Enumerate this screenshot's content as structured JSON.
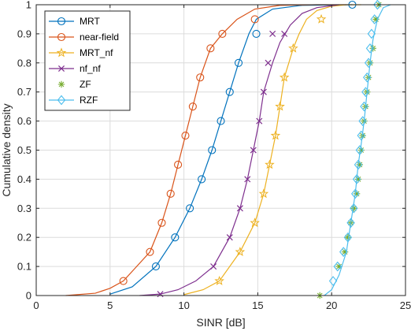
{
  "chart_data": {
    "type": "line",
    "title": "",
    "xlabel": "SINR [dB]",
    "ylabel": "Cumulative density",
    "xlim": [
      0,
      25
    ],
    "ylim": [
      0,
      1
    ],
    "xticks": [
      0,
      5,
      10,
      15,
      20,
      25
    ],
    "yticks": [
      0,
      0.1,
      0.2,
      0.3,
      0.4,
      0.5,
      0.6,
      0.7,
      0.8,
      0.9,
      1
    ],
    "xtick_labels": [
      "0",
      "5",
      "10",
      "15",
      "20",
      "25"
    ],
    "ytick_labels": [
      "0",
      "0.1",
      "0.2",
      "0.3",
      "0.4",
      "0.5",
      "0.6",
      "0.7",
      "0.8",
      "0.9",
      "1"
    ],
    "grid": true,
    "legend_position": "top-left",
    "series": [
      {
        "name": "MRT",
        "color": "#0072BD",
        "marker": "circle",
        "line": true,
        "x": [
          5.0,
          6.5,
          8.1,
          9.4,
          10.4,
          11.2,
          11.9,
          12.5,
          13.1,
          13.7,
          14.4,
          14.9,
          16.0,
          18.0,
          21.4
        ],
        "y": [
          0.005,
          0.03,
          0.1,
          0.2,
          0.3,
          0.4,
          0.5,
          0.6,
          0.7,
          0.8,
          0.9,
          0.95,
          0.985,
          0.998,
          1.0
        ],
        "mx": [
          8.1,
          9.4,
          10.4,
          11.2,
          11.9,
          12.5,
          13.1,
          13.7,
          14.9,
          21.4
        ],
        "my": [
          0.1,
          0.2,
          0.3,
          0.4,
          0.5,
          0.6,
          0.7,
          0.8,
          0.9,
          1.0
        ]
      },
      {
        "name": "near-field",
        "color": "#D95319",
        "marker": "circle",
        "line": true,
        "x": [
          2.0,
          4.0,
          5.0,
          5.9,
          6.8,
          7.7,
          8.5,
          9.1,
          9.6,
          10.1,
          10.6,
          11.1,
          11.8,
          12.6,
          13.6,
          14.8,
          16.5,
          19.0,
          21.0
        ],
        "y": [
          0.0,
          0.008,
          0.025,
          0.05,
          0.1,
          0.15,
          0.25,
          0.35,
          0.45,
          0.55,
          0.65,
          0.75,
          0.85,
          0.9,
          0.95,
          0.985,
          0.998,
          1.0,
          1.0
        ],
        "mx": [
          5.9,
          7.7,
          8.5,
          9.1,
          9.6,
          10.1,
          10.6,
          11.1,
          11.8,
          12.6,
          14.8
        ],
        "my": [
          0.05,
          0.15,
          0.25,
          0.35,
          0.45,
          0.55,
          0.65,
          0.75,
          0.85,
          0.9,
          0.95
        ]
      },
      {
        "name": "MRT_nf",
        "color": "#EDB120",
        "marker": "star",
        "line": true,
        "x": [
          10.0,
          11.3,
          12.4,
          13.8,
          14.8,
          15.4,
          15.8,
          16.2,
          16.5,
          16.8,
          17.1,
          17.4,
          17.8,
          18.3,
          19.0,
          20.0,
          21.0,
          22.0
        ],
        "y": [
          0.003,
          0.02,
          0.05,
          0.15,
          0.25,
          0.35,
          0.45,
          0.55,
          0.65,
          0.75,
          0.8,
          0.85,
          0.9,
          0.95,
          0.98,
          0.995,
          1.0,
          1.0
        ],
        "mx": [
          12.4,
          13.8,
          14.8,
          15.4,
          15.8,
          16.2,
          16.5,
          16.8,
          17.4,
          19.3
        ],
        "my": [
          0.05,
          0.15,
          0.25,
          0.35,
          0.45,
          0.55,
          0.65,
          0.75,
          0.85,
          0.95
        ]
      },
      {
        "name": "nf_nf",
        "color": "#7E2F8E",
        "marker": "cross",
        "line": true,
        "x": [
          7.0,
          8.4,
          9.6,
          10.8,
          12.0,
          13.1,
          13.8,
          14.3,
          14.7,
          15.1,
          15.4,
          15.7,
          16.0,
          16.5,
          17.2,
          18.0,
          19.0,
          20.5
        ],
        "y": [
          0.0,
          0.005,
          0.02,
          0.05,
          0.1,
          0.2,
          0.3,
          0.4,
          0.5,
          0.6,
          0.7,
          0.75,
          0.8,
          0.87,
          0.93,
          0.97,
          0.99,
          1.0
        ],
        "mx": [
          8.4,
          12.0,
          13.1,
          13.8,
          14.3,
          14.7,
          15.1,
          15.4,
          15.7,
          16.0,
          16.8
        ],
        "my": [
          0.005,
          0.1,
          0.2,
          0.3,
          0.4,
          0.5,
          0.6,
          0.7,
          0.8,
          0.9,
          0.9
        ]
      },
      {
        "name": "ZF",
        "color": "#77AC30",
        "marker": "asterisk",
        "line": false,
        "x": [],
        "y": [],
        "mx": [
          19.2,
          20.5,
          20.9,
          21.1,
          21.3,
          21.5,
          21.7,
          21.8,
          21.9,
          22.0,
          22.1,
          22.2,
          22.3,
          22.4,
          22.5,
          22.6,
          22.8,
          23.0,
          23.2
        ],
        "my": [
          0.0,
          0.1,
          0.15,
          0.2,
          0.25,
          0.3,
          0.35,
          0.4,
          0.45,
          0.5,
          0.55,
          0.6,
          0.65,
          0.7,
          0.75,
          0.8,
          0.85,
          0.95,
          1.0
        ]
      },
      {
        "name": "RZF",
        "color": "#4DBEEE",
        "marker": "diamond",
        "line": true,
        "x": [
          19.5,
          20.0,
          20.5,
          21.0,
          21.3,
          21.6,
          21.8,
          22.0,
          22.2,
          22.4,
          22.6,
          22.8,
          23.1,
          23.5,
          24.0
        ],
        "y": [
          0.0,
          0.02,
          0.07,
          0.15,
          0.25,
          0.35,
          0.45,
          0.52,
          0.6,
          0.7,
          0.8,
          0.88,
          0.95,
          0.99,
          1.0
        ],
        "mx": [
          20.1,
          20.4,
          20.8,
          21.1,
          21.3,
          21.5,
          21.6,
          21.7,
          21.8,
          21.9,
          22.0,
          22.1,
          22.2,
          22.3,
          22.4,
          22.5,
          22.6,
          22.7,
          22.9,
          23.1
        ],
        "my": [
          0.05,
          0.1,
          0.15,
          0.2,
          0.25,
          0.3,
          0.35,
          0.4,
          0.45,
          0.5,
          0.55,
          0.6,
          0.65,
          0.7,
          0.75,
          0.8,
          0.85,
          0.9,
          0.95,
          1.0
        ]
      }
    ]
  }
}
